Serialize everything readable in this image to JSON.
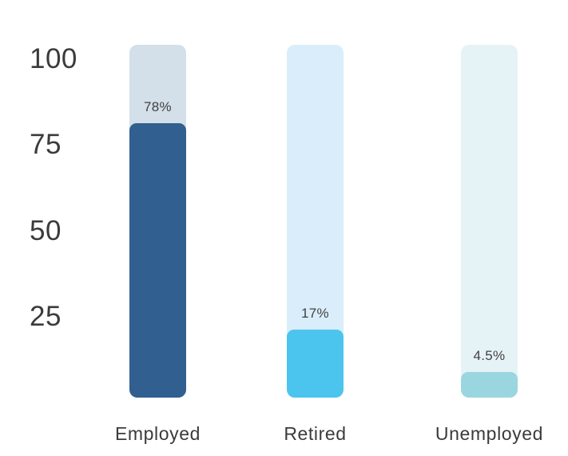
{
  "chart_data": {
    "type": "bar",
    "title": "",
    "orientation": "vertical",
    "grid": false,
    "legend": null,
    "categories": [
      "Employed",
      "Retired",
      "Unemployed"
    ],
    "values": [
      78,
      17,
      4.5
    ],
    "value_labels": [
      "78%",
      "17%",
      "4.5%"
    ],
    "y_ticks": [
      100,
      75,
      50,
      25
    ],
    "ylim": [
      0,
      104
    ],
    "background_color": "#ffffff",
    "text_color": "#3b3b3b",
    "bars": [
      {
        "label": "Employed",
        "value": 78,
        "value_label": "78%",
        "fill_color": "#305f90",
        "track_color": "#d3dfe9"
      },
      {
        "label": "Retired",
        "value": 17,
        "value_label": "17%",
        "fill_color": "#4cc5ee",
        "track_color": "#d9eefa"
      },
      {
        "label": "Unemployed",
        "value": 4.5,
        "value_label": "4.5%",
        "fill_color": "#9ad6df",
        "track_color": "#e6f3f6"
      }
    ]
  }
}
